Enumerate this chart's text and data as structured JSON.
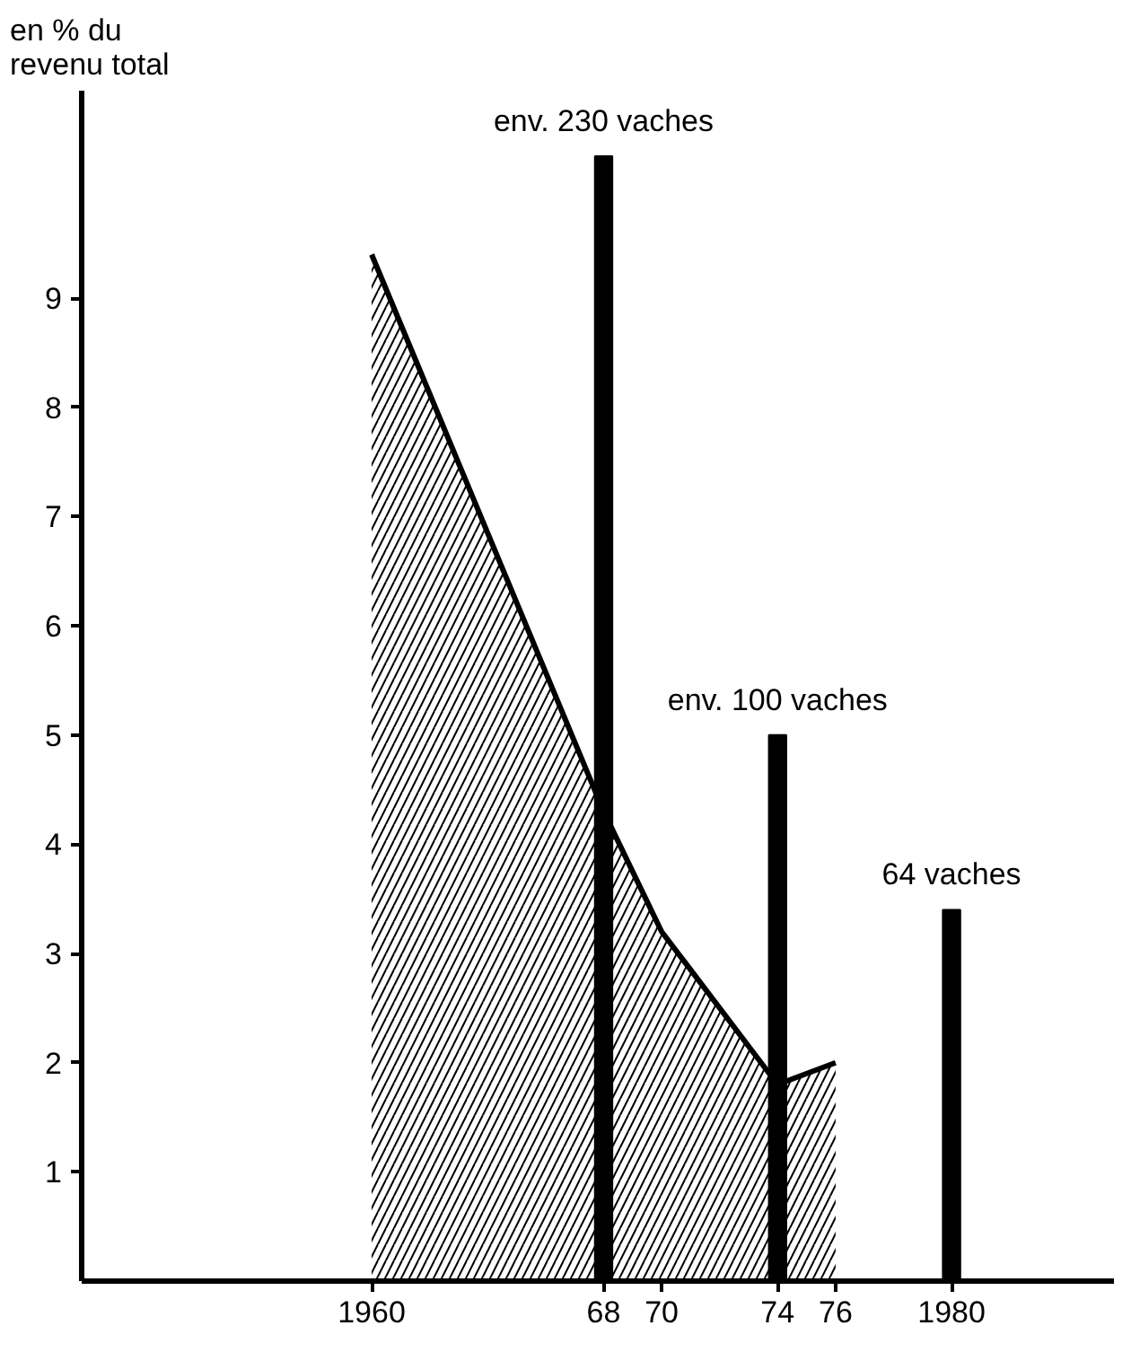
{
  "chart_data": {
    "type": "area",
    "ylabel": "en % du\nrevenu total",
    "series": [
      {
        "color": "#000000",
        "x": [
          1960,
          1968,
          1970,
          1974,
          1976
        ],
        "values": [
          9.4,
          4.3,
          3.2,
          1.8,
          2.0
        ]
      },
      {
        "type": "bar",
        "color": "#000000",
        "x": [
          1968,
          1974,
          1980
        ],
        "values": [
          10.3,
          5.0,
          3.4
        ]
      }
    ],
    "annotations": [
      {
        "text": "env. 230 vaches",
        "x": 1968,
        "y": 10.3
      },
      {
        "text": "env. 100 vaches",
        "x": 1974,
        "y": 5.0
      },
      {
        "text": "64 vaches",
        "x": 1980,
        "y": 3.4
      }
    ],
    "xlim": [
      1950,
      1985.6
    ],
    "ylim": [
      0,
      10.9
    ],
    "xticks": [
      1960,
      {
        "value": 1968,
        "label": "68"
      },
      {
        "value": 1970,
        "label": "70"
      },
      {
        "value": 1974,
        "label": "74"
      },
      {
        "value": 1976,
        "label": "76"
      },
      1980
    ],
    "yticks": [
      1,
      2,
      3,
      4,
      5,
      6,
      7,
      8,
      9
    ],
    "grid": false
  }
}
